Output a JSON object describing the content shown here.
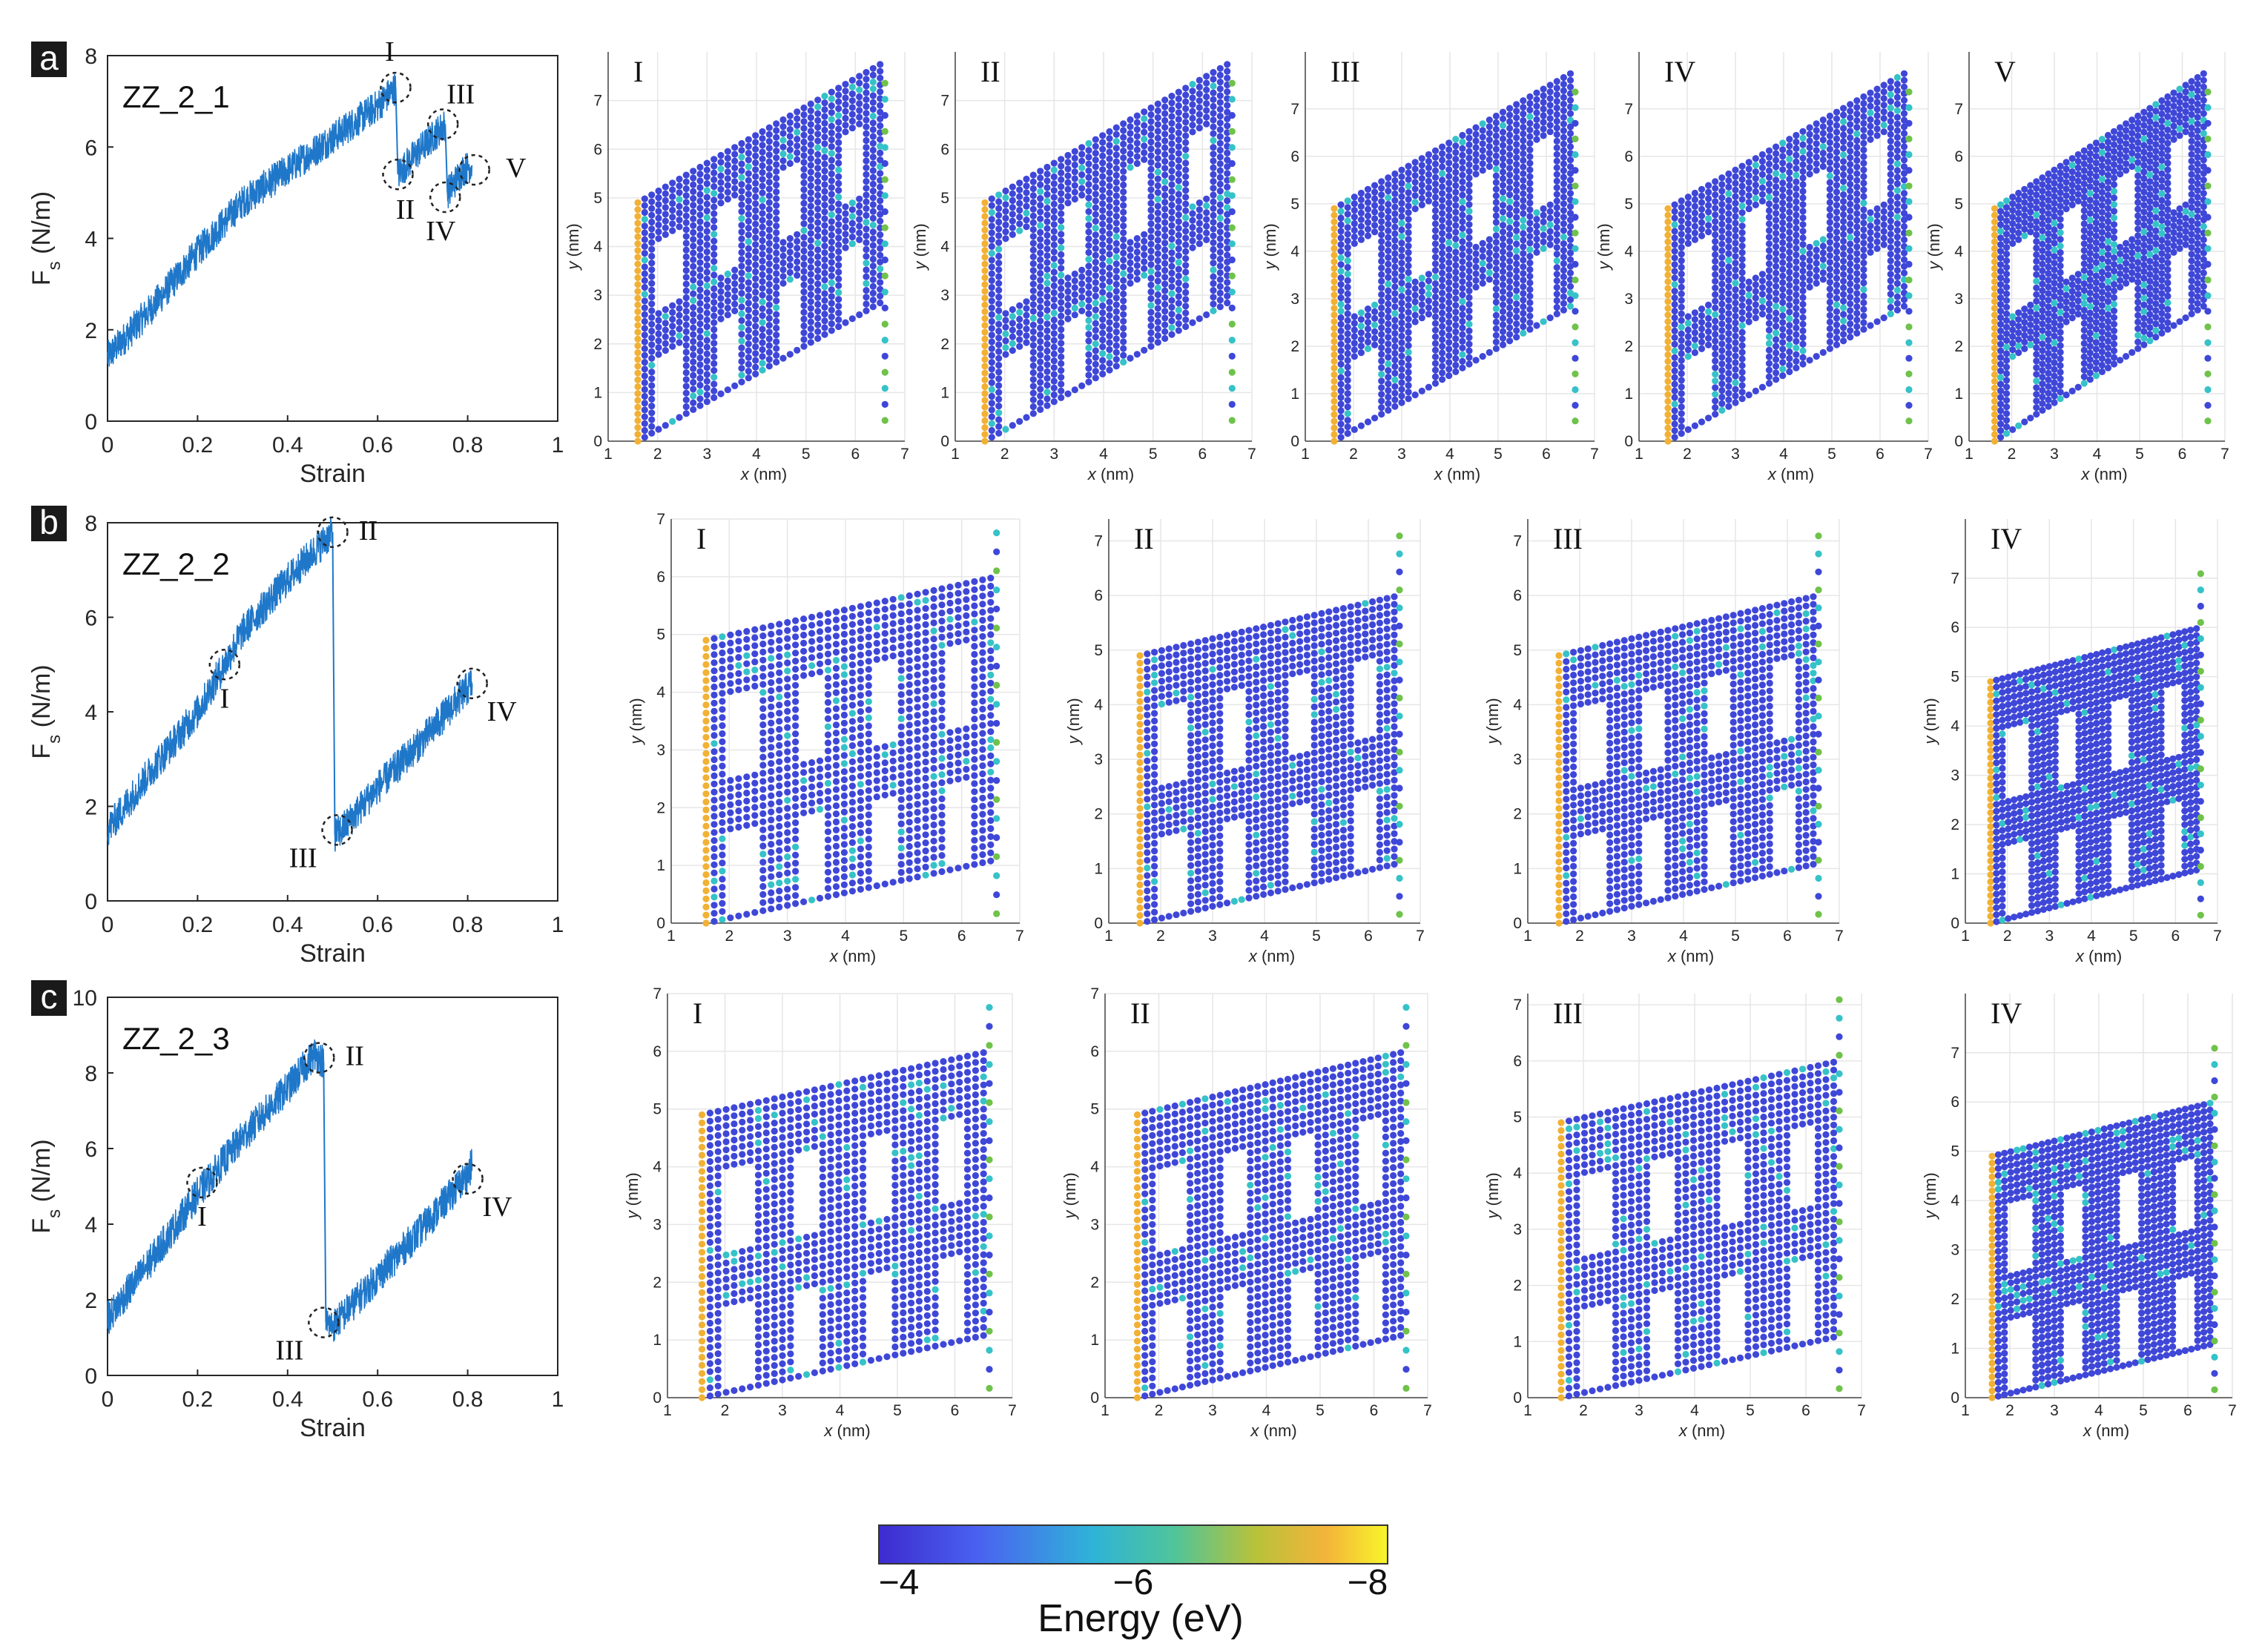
{
  "colors": {
    "curve": "#1f77c9",
    "atom_base": "#3f47d8",
    "bond": "#35c2c8",
    "edge_atom": "#f2b134",
    "marker": "#222222"
  },
  "colorbar": {
    "ticks": [
      "−4",
      "−6",
      "−8"
    ],
    "label": "Energy (eV)",
    "stops": [
      "#3d2bd0",
      "#4a63f0",
      "#2fb3d8",
      "#4fc49a",
      "#b8c23a",
      "#f4b43a",
      "#f8f52a"
    ]
  },
  "chart_data": [
    {
      "type": "line",
      "panel": "a",
      "name": "ZZ_2_1",
      "xlabel": "Strain",
      "ylabel": "F",
      "ylabel_sub": "s",
      "ylabel_unit": "(N/m)",
      "xlim": [
        0,
        1
      ],
      "ylim": [
        0,
        8
      ],
      "xticks": [
        "0",
        "0.2",
        "0.4",
        "0.6",
        "0.8",
        "1"
      ],
      "yticks": [
        "0",
        "2",
        "4",
        "6",
        "8"
      ],
      "segments": [
        {
          "x": [
            0,
            0.1,
            0.2,
            0.3,
            0.4,
            0.5,
            0.6,
            0.64
          ],
          "y": [
            1.4,
            2.5,
            3.7,
            4.8,
            5.5,
            6.2,
            6.9,
            7.3
          ]
        },
        {
          "x": [
            0.645,
            0.68,
            0.72,
            0.75
          ],
          "y": [
            5.4,
            5.8,
            6.2,
            6.5
          ]
        },
        {
          "x": [
            0.755,
            0.79,
            0.81
          ],
          "y": [
            5.0,
            5.5,
            5.6
          ]
        }
      ],
      "markers": [
        {
          "label": "I",
          "x": 0.64,
          "y": 7.3
        },
        {
          "label": "II",
          "x": 0.645,
          "y": 5.4
        },
        {
          "label": "III",
          "x": 0.745,
          "y": 6.5
        },
        {
          "label": "IV",
          "x": 0.75,
          "y": 4.9
        },
        {
          "label": "V",
          "x": 0.815,
          "y": 5.5
        }
      ],
      "snapshots": [
        {
          "label": "I",
          "xticks": [
            "1",
            "2",
            "3",
            "4",
            "5",
            "6",
            "7"
          ],
          "yticks": [
            "0",
            "1",
            "2",
            "3",
            "4",
            "5",
            "6",
            "7"
          ],
          "ymax": 8
        },
        {
          "label": "II",
          "xticks": [
            "1",
            "2",
            "3",
            "4",
            "5",
            "6",
            "7"
          ],
          "yticks": [
            "0",
            "1",
            "2",
            "3",
            "4",
            "5",
            "6",
            "7"
          ],
          "ymax": 8
        },
        {
          "label": "III",
          "xticks": [
            "1",
            "2",
            "3",
            "4",
            "5",
            "6",
            "7"
          ],
          "yticks": [
            "0",
            "1",
            "2",
            "3",
            "4",
            "5",
            "6",
            "7"
          ],
          "ymax": 8.2
        },
        {
          "label": "IV",
          "xticks": [
            "1",
            "2",
            "3",
            "4",
            "5",
            "6",
            "7"
          ],
          "yticks": [
            "0",
            "1",
            "2",
            "3",
            "4",
            "5",
            "6",
            "7"
          ],
          "ymax": 8.2
        },
        {
          "label": "V",
          "xticks": [
            "1",
            "2",
            "3",
            "4",
            "5",
            "6",
            "7"
          ],
          "yticks": [
            "0",
            "1",
            "2",
            "3",
            "4",
            "5",
            "6",
            "7"
          ],
          "ymax": 8.2
        }
      ]
    },
    {
      "type": "line",
      "panel": "b",
      "name": "ZZ_2_2",
      "xlabel": "Strain",
      "ylabel": "F",
      "ylabel_sub": "s",
      "ylabel_unit": "(N/m)",
      "xlim": [
        0,
        1
      ],
      "ylim": [
        0,
        8
      ],
      "xticks": [
        "0",
        "0.2",
        "0.4",
        "0.6",
        "0.8",
        "1"
      ],
      "yticks": [
        "0",
        "2",
        "4",
        "6",
        "8"
      ],
      "segments": [
        {
          "x": [
            0,
            0.1,
            0.2,
            0.26,
            0.3,
            0.4,
            0.5
          ],
          "y": [
            1.5,
            2.8,
            4.0,
            5.0,
            5.7,
            6.8,
            7.8
          ]
        },
        {
          "x": [
            0.505,
            0.52,
            0.6,
            0.7,
            0.8,
            0.81
          ],
          "y": [
            1.4,
            1.5,
            2.4,
            3.4,
            4.5,
            4.6
          ]
        }
      ],
      "markers": [
        {
          "label": "I",
          "x": 0.26,
          "y": 5.0
        },
        {
          "label": "II",
          "x": 0.5,
          "y": 7.8
        },
        {
          "label": "III",
          "x": 0.51,
          "y": 1.5
        },
        {
          "label": "IV",
          "x": 0.81,
          "y": 4.6
        }
      ],
      "snapshots": [
        {
          "label": "I",
          "xticks": [
            "1",
            "2",
            "3",
            "4",
            "5",
            "6",
            "7"
          ],
          "yticks": [
            "0",
            "1",
            "2",
            "3",
            "4",
            "5",
            "6",
            "7"
          ],
          "ymax": 7
        },
        {
          "label": "II",
          "xticks": [
            "1",
            "2",
            "3",
            "4",
            "5",
            "6",
            "7"
          ],
          "yticks": [
            "0",
            "1",
            "2",
            "3",
            "4",
            "5",
            "6",
            "7"
          ],
          "ymax": 7.4
        },
        {
          "label": "III",
          "xticks": [
            "1",
            "2",
            "3",
            "4",
            "5",
            "6",
            "7"
          ],
          "yticks": [
            "0",
            "1",
            "2",
            "3",
            "4",
            "5",
            "6",
            "7"
          ],
          "ymax": 7.4
        },
        {
          "label": "IV",
          "xticks": [
            "1",
            "2",
            "3",
            "4",
            "5",
            "6",
            "7"
          ],
          "yticks": [
            "0",
            "1",
            "2",
            "3",
            "4",
            "5",
            "6",
            "7"
          ],
          "ymax": 8.2
        }
      ]
    },
    {
      "type": "line",
      "panel": "c",
      "name": "ZZ_2_3",
      "xlabel": "Strain",
      "ylabel": "F",
      "ylabel_sub": "s",
      "ylabel_unit": "(N/m)",
      "xlim": [
        0,
        1
      ],
      "ylim": [
        0,
        10
      ],
      "xticks": [
        "0",
        "0.2",
        "0.4",
        "0.6",
        "0.8",
        "1"
      ],
      "yticks": [
        "0",
        "2",
        "4",
        "6",
        "8",
        "10"
      ],
      "segments": [
        {
          "x": [
            0,
            0.1,
            0.2,
            0.3,
            0.4,
            0.46,
            0.48
          ],
          "y": [
            1.5,
            3.1,
            4.8,
            6.3,
            7.6,
            8.5,
            8.3
          ]
        },
        {
          "x": [
            0.485,
            0.5,
            0.6,
            0.7,
            0.8,
            0.81
          ],
          "y": [
            1.4,
            1.3,
            2.6,
            3.9,
            5.3,
            5.6
          ]
        }
      ],
      "markers": [
        {
          "label": "I",
          "x": 0.21,
          "y": 5.1
        },
        {
          "label": "II",
          "x": 0.47,
          "y": 8.4
        },
        {
          "label": "III",
          "x": 0.48,
          "y": 1.4
        },
        {
          "label": "IV",
          "x": 0.8,
          "y": 5.2
        }
      ],
      "snapshots": [
        {
          "label": "I",
          "xticks": [
            "1",
            "2",
            "3",
            "4",
            "5",
            "6",
            "7"
          ],
          "yticks": [
            "0",
            "1",
            "2",
            "3",
            "4",
            "5",
            "6",
            "7"
          ],
          "ymax": 7
        },
        {
          "label": "II",
          "xticks": [
            "1",
            "2",
            "3",
            "4",
            "5",
            "6",
            "7"
          ],
          "yticks": [
            "0",
            "1",
            "2",
            "3",
            "4",
            "5",
            "6",
            "7"
          ],
          "ymax": 7
        },
        {
          "label": "III",
          "xticks": [
            "1",
            "2",
            "3",
            "4",
            "5",
            "6",
            "7"
          ],
          "yticks": [
            "0",
            "1",
            "2",
            "3",
            "4",
            "5",
            "6",
            "7"
          ],
          "ymax": 7.2
        },
        {
          "label": "IV",
          "xticks": [
            "1",
            "2",
            "3",
            "4",
            "5",
            "6",
            "7"
          ],
          "yticks": [
            "0",
            "1",
            "2",
            "3",
            "4",
            "5",
            "6",
            "7"
          ],
          "ymax": 8.2
        }
      ]
    }
  ],
  "snapshot_axes": {
    "xlabel": "x",
    "xunit": "(nm)",
    "ylabel": "y",
    "yunit": "(nm)",
    "xlim": [
      1,
      7
    ]
  }
}
